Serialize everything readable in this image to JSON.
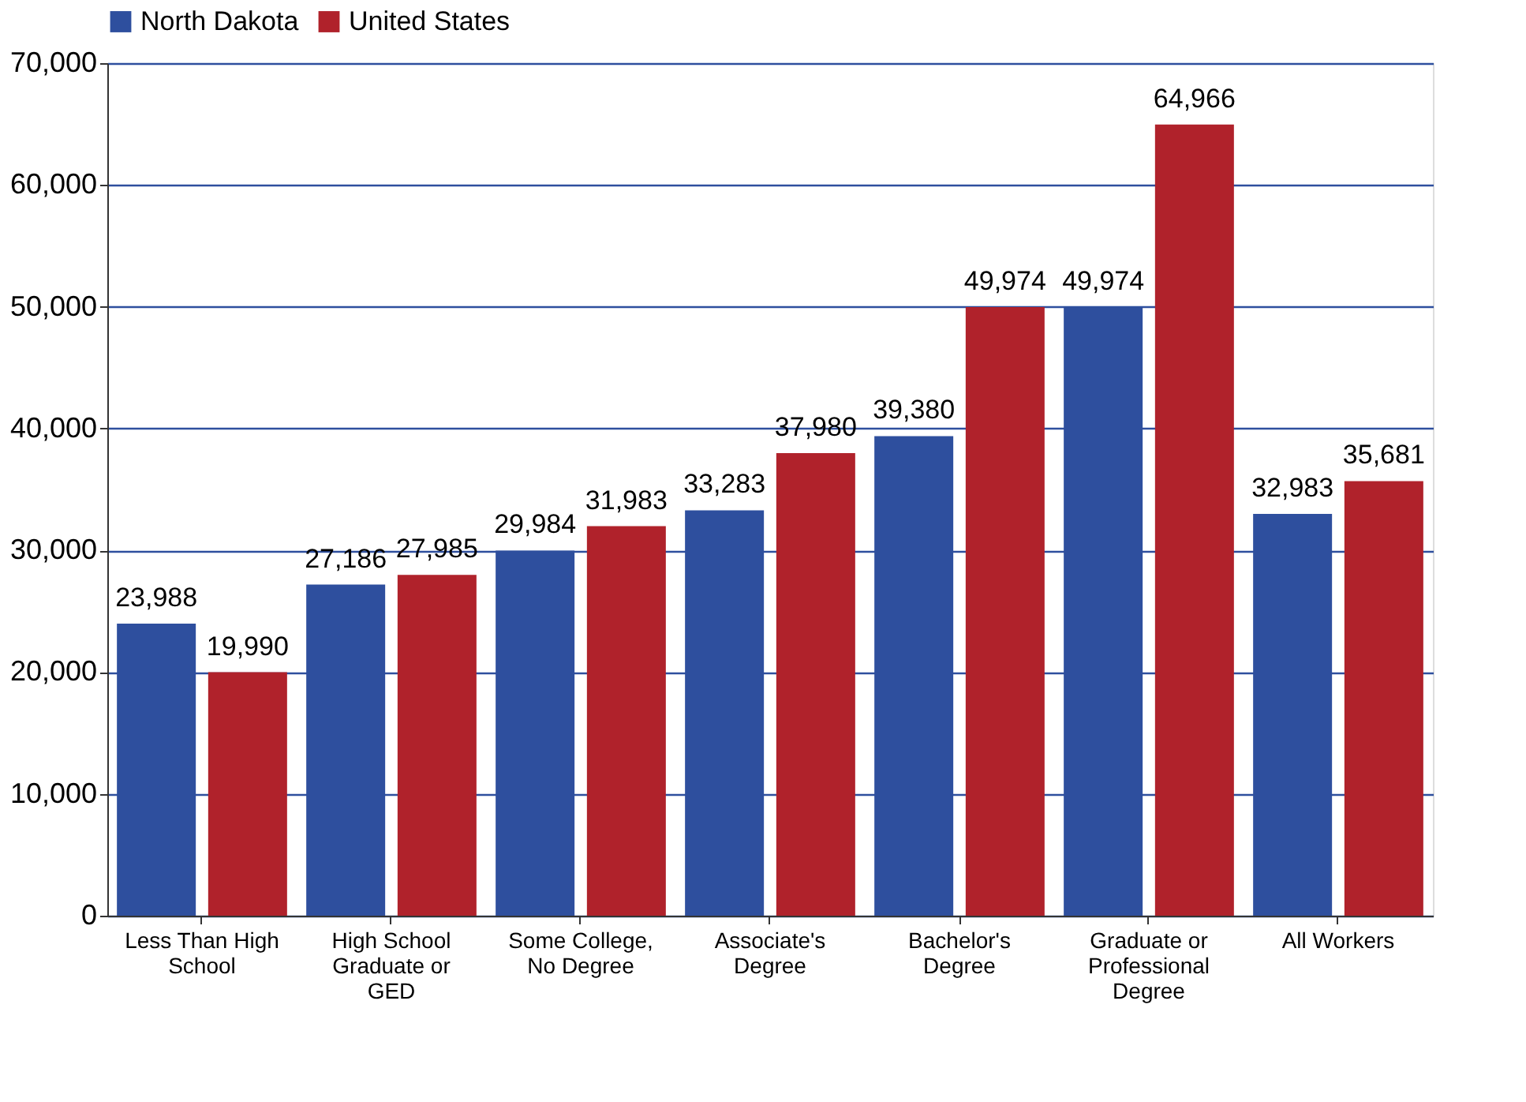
{
  "chart_data": {
    "type": "bar",
    "categories": [
      "Less Than High\nSchool",
      "High School\nGraduate or\nGED",
      "Some College,\nNo Degree",
      "Associate's\nDegree",
      "Bachelor's\nDegree",
      "Graduate or\nProfessional\nDegree",
      "All Workers"
    ],
    "series": [
      {
        "name": "North Dakota",
        "color": "#2e4f9e",
        "values": [
          23988,
          27186,
          29984,
          33283,
          39380,
          49974,
          32983
        ],
        "value_labels": [
          "23,988",
          "27,186",
          "29,984",
          "33,283",
          "39,380",
          "49,974",
          "32,983"
        ]
      },
      {
        "name": "United States",
        "color": "#b0222b",
        "values": [
          19990,
          27985,
          31983,
          37980,
          49974,
          64966,
          35681
        ],
        "value_labels": [
          "19,990",
          "27,985",
          "31,983",
          "37,980",
          "49,974",
          "64,966",
          "35,681"
        ]
      }
    ],
    "ylim": [
      0,
      70000
    ],
    "yticks": [
      0,
      {
        "value": 10000,
        "label": "10,000"
      },
      {
        "value": 20000,
        "label": "20,000"
      },
      {
        "value": 30000,
        "label": "30,000"
      },
      {
        "value": 40000,
        "label": "40,000"
      },
      {
        "value": 50000,
        "label": "50,000"
      },
      {
        "value": 60000,
        "label": "60,000"
      },
      {
        "value": 70000,
        "label": "70,000"
      }
    ],
    "grid": "y",
    "legend": "top"
  }
}
